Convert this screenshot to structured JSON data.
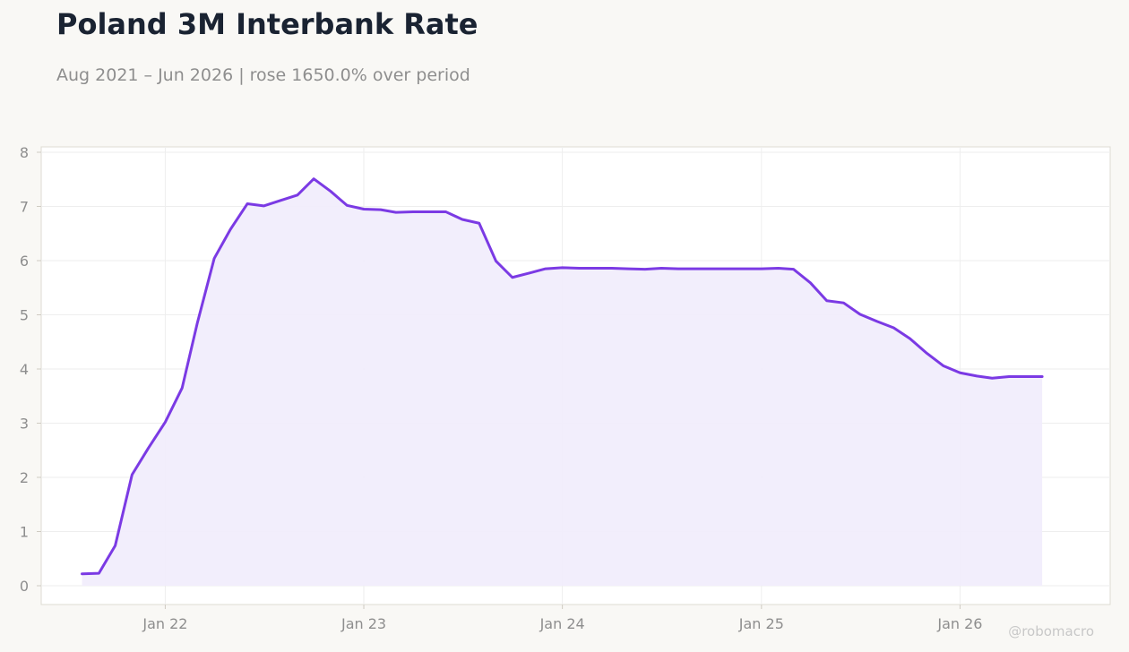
{
  "colors": {
    "background": "#f9f8f5",
    "plot_background": "#ffffff",
    "line": "#7b3ae4",
    "fill": "#f1ecfc",
    "title": "#1a2332",
    "muted": "#8e8e8e",
    "grid": "#eeeeee"
  },
  "watermark": "@robomacro",
  "chart_data": {
    "type": "area",
    "title": "Poland 3M Interbank Rate",
    "subtitle": "Aug 2021 – Jun 2026 | rose 1650.0% over period",
    "xlabel": "",
    "ylabel": "",
    "ylim": [
      0,
      8
    ],
    "yticks": [
      0,
      1,
      2,
      3,
      4,
      5,
      6,
      7,
      8
    ],
    "xlim": [
      "2021-05-18",
      "2026-10-04"
    ],
    "xticks": [
      {
        "date": "2022-01-01",
        "label": "Jan 22"
      },
      {
        "date": "2023-01-01",
        "label": "Jan 23"
      },
      {
        "date": "2024-01-01",
        "label": "Jan 24"
      },
      {
        "date": "2025-01-01",
        "label": "Jan 25"
      },
      {
        "date": "2026-01-01",
        "label": "Jan 26"
      }
    ],
    "grid": true,
    "series": [
      {
        "x": [
          "2021-08",
          "2021-09",
          "2021-10",
          "2021-11",
          "2021-12",
          "2022-01",
          "2022-02",
          "2022-03",
          "2022-04",
          "2022-05",
          "2022-06",
          "2022-07",
          "2022-08",
          "2022-09",
          "2022-10",
          "2022-11",
          "2022-12",
          "2023-01",
          "2023-02",
          "2023-03",
          "2023-04",
          "2023-05",
          "2023-06",
          "2023-07",
          "2023-08",
          "2023-09",
          "2023-10",
          "2023-11",
          "2023-12",
          "2024-01",
          "2024-02",
          "2024-03",
          "2024-04",
          "2024-05",
          "2024-06",
          "2024-07",
          "2024-08",
          "2024-09",
          "2024-10",
          "2024-11",
          "2024-12",
          "2025-01",
          "2025-02",
          "2025-03",
          "2025-04",
          "2025-05",
          "2025-06",
          "2025-07",
          "2025-08",
          "2025-09",
          "2025-10",
          "2025-11",
          "2025-12",
          "2026-01",
          "2026-02",
          "2026-03",
          "2026-04",
          "2026-05",
          "2026-06"
        ],
        "values": [
          0.22,
          0.23,
          0.74,
          2.05,
          2.54,
          3.02,
          3.65,
          4.85,
          6.04,
          6.58,
          7.05,
          7.01,
          7.11,
          7.21,
          7.51,
          7.28,
          7.02,
          6.95,
          6.94,
          6.89,
          6.9,
          6.9,
          6.9,
          6.76,
          6.69,
          5.99,
          5.69,
          5.77,
          5.85,
          5.87,
          5.86,
          5.86,
          5.86,
          5.85,
          5.84,
          5.86,
          5.85,
          5.85,
          5.85,
          5.85,
          5.85,
          5.85,
          5.86,
          5.84,
          5.59,
          5.26,
          5.22,
          5.01,
          4.88,
          4.76,
          4.56,
          4.29,
          4.06,
          3.93,
          3.87,
          3.83,
          3.86,
          3.86,
          3.86
        ]
      }
    ]
  }
}
